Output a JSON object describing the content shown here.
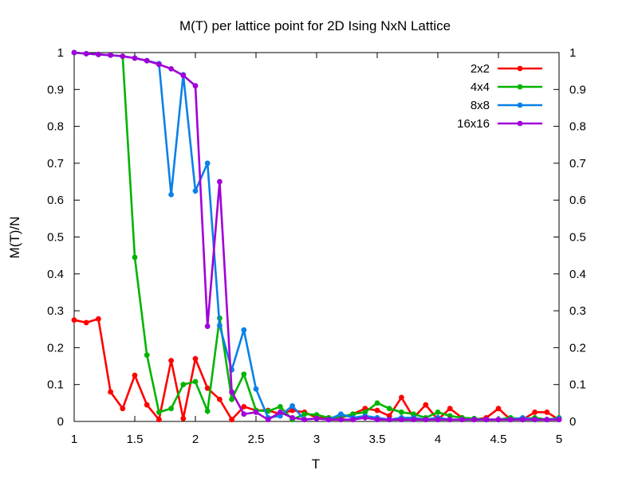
{
  "chart_data": {
    "type": "line",
    "title": "M(T) per lattice point for 2D Ising NxN Lattice",
    "xlabel": "T",
    "ylabel": "M(T)/N",
    "xlim": [
      1,
      5
    ],
    "ylim": [
      0,
      1
    ],
    "x_ticks": [
      "1",
      "1.5",
      "2",
      "2.5",
      "3",
      "3.5",
      "4",
      "4.5",
      "5"
    ],
    "y_ticks": [
      "0",
      "0.1",
      "0.2",
      "0.3",
      "0.4",
      "0.5",
      "0.6",
      "0.7",
      "0.8",
      "0.9",
      "1"
    ],
    "y2_ticks": [
      "0",
      "0.1",
      "0.2",
      "0.3",
      "0.4",
      "0.5",
      "0.6",
      "0.7",
      "0.8",
      "0.9",
      "1"
    ],
    "grid": false,
    "legend_position": "top-right",
    "x": [
      1.0,
      1.1,
      1.2,
      1.3,
      1.4,
      1.5,
      1.6,
      1.7,
      1.8,
      1.9,
      2.0,
      2.1,
      2.2,
      2.3,
      2.4,
      2.5,
      2.6,
      2.7,
      2.8,
      2.9,
      3.0,
      3.1,
      3.2,
      3.3,
      3.4,
      3.5,
      3.6,
      3.7,
      3.8,
      3.9,
      4.0,
      4.1,
      4.2,
      4.3,
      4.4,
      4.5,
      4.6,
      4.7,
      4.8,
      4.9,
      5.0
    ],
    "series": [
      {
        "name": "2x2",
        "color": "#ff0000",
        "values": [
          0.275,
          0.268,
          0.278,
          0.08,
          0.035,
          0.125,
          0.045,
          0.005,
          0.165,
          0.008,
          0.17,
          0.09,
          0.06,
          0.005,
          0.04,
          0.03,
          0.03,
          0.02,
          0.03,
          0.025,
          0.01,
          0.01,
          0.01,
          0.02,
          0.035,
          0.03,
          0.015,
          0.065,
          0.01,
          0.045,
          0.005,
          0.035,
          0.01,
          0.005,
          0.01,
          0.035,
          0.005,
          0.005,
          0.025,
          0.025,
          0.005
        ]
      },
      {
        "name": "4x4",
        "color": "#00b400",
        "values": [
          1.0,
          0.997,
          0.995,
          0.993,
          0.99,
          0.445,
          0.18,
          0.025,
          0.035,
          0.1,
          0.108,
          0.028,
          0.28,
          0.06,
          0.128,
          0.03,
          0.028,
          0.04,
          0.005,
          0.02,
          0.018,
          0.01,
          0.012,
          0.02,
          0.025,
          0.05,
          0.035,
          0.025,
          0.02,
          0.01,
          0.025,
          0.015,
          0.01,
          0.008,
          0.005,
          0.005,
          0.01,
          0.005,
          0.01,
          0.005,
          0.01
        ]
      },
      {
        "name": "8x8",
        "color": "#0a80e8",
        "values": [
          1.0,
          0.997,
          0.995,
          0.993,
          0.99,
          0.985,
          0.978,
          0.97,
          0.615,
          0.94,
          0.625,
          0.7,
          0.26,
          0.14,
          0.248,
          0.088,
          0.01,
          0.015,
          0.042,
          0.005,
          0.008,
          0.005,
          0.02,
          0.01,
          0.015,
          0.01,
          0.005,
          0.01,
          0.01,
          0.005,
          0.01,
          0.005,
          0.005,
          0.005,
          0.005,
          0.005,
          0.005,
          0.01,
          0.005,
          0.005,
          0.008
        ]
      },
      {
        "name": "16x16",
        "color": "#a000d8",
        "values": [
          1.0,
          0.997,
          0.995,
          0.993,
          0.99,
          0.985,
          0.978,
          0.968,
          0.956,
          0.938,
          0.91,
          0.258,
          0.65,
          0.08,
          0.02,
          0.025,
          0.005,
          0.025,
          0.01,
          0.005,
          0.008,
          0.005,
          0.005,
          0.005,
          0.01,
          0.005,
          0.005,
          0.005,
          0.005,
          0.005,
          0.005,
          0.005,
          0.005,
          0.005,
          0.005,
          0.005,
          0.005,
          0.005,
          0.005,
          0.005,
          0.005
        ]
      }
    ]
  }
}
